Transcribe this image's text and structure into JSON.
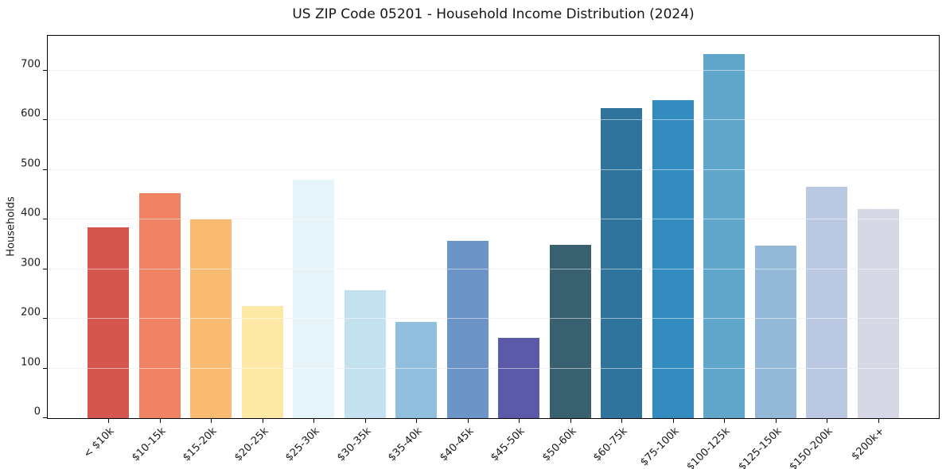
{
  "chart_data": {
    "type": "bar",
    "title": "US ZIP Code 05201 - Household Income Distribution (2024)",
    "xlabel": "",
    "ylabel": "Households",
    "categories": [
      "< $10k",
      "$10-15k",
      "$15-20k",
      "$20-25k",
      "$25-30k",
      "$30-35k",
      "$35-40k",
      "$40-45k",
      "$45-50k",
      "$50-60k",
      "$60-75k",
      "$75-100k",
      "$100-125k",
      "$125-150k",
      "$150-200k",
      "$200k+"
    ],
    "values": [
      384,
      453,
      400,
      225,
      480,
      258,
      193,
      357,
      162,
      349,
      625,
      640,
      733,
      348,
      466,
      421
    ],
    "bar_colors": [
      "#d4564e",
      "#f18365",
      "#f9bb72",
      "#fde9a5",
      "#e6f3f8",
      "#c3e1ee",
      "#90bedd",
      "#6c94c6",
      "#5b5aa8",
      "#39606f",
      "#2f749c",
      "#338bc0",
      "#60a6cb",
      "#93b8d8",
      "#bac9e1",
      "#d6d8e6"
    ],
    "yticks": [
      0,
      100,
      200,
      300,
      400,
      500,
      600,
      700
    ],
    "ylim": [
      0,
      770
    ],
    "grid": "horizontal",
    "legend": "none",
    "background_color": "#ffffff",
    "gridline_color": "#e7e7e7",
    "axis_color": "#000000"
  }
}
